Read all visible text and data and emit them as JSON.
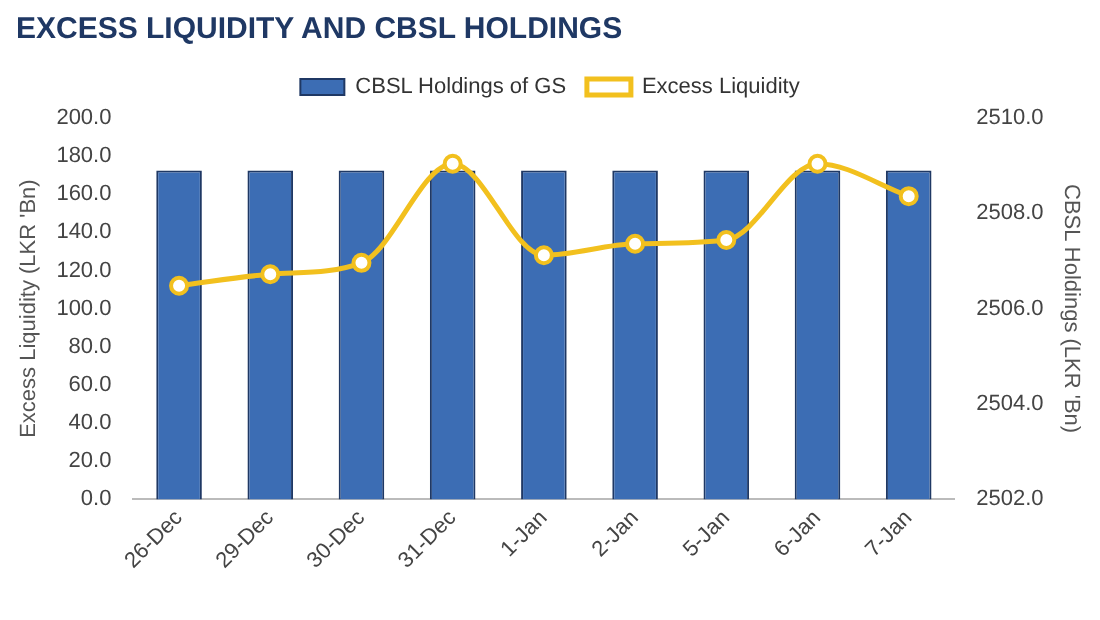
{
  "chart_data": {
    "type": "bar",
    "title": "EXCESS LIQUIDITY AND CBSL HOLDINGS",
    "categories": [
      "26-Dec",
      "29-Dec",
      "30-Dec",
      "31-Dec",
      "1-Jan",
      "2-Jan",
      "5-Jan",
      "6-Jan",
      "7-Jan"
    ],
    "series": [
      {
        "name": "CBSL Holdings of GS",
        "axis": "y2",
        "color": "#3c6db4",
        "values": [
          2508.9,
          2508.9,
          2508.9,
          2508.9,
          2508.9,
          2508.9,
          2508.9,
          2508.9,
          2508.9
        ]
      },
      {
        "name": "Excess Liquidity",
        "type": "line",
        "color": "#f2c01e",
        "values": [
          112,
          118,
          124,
          176,
          128,
          134,
          136,
          176,
          159
        ]
      }
    ],
    "ylabel": "Excess Liquidity (LKR 'Bn)",
    "y2label": "CBSL Holdings (LKR 'Bn)",
    "ylim": [
      0,
      200
    ],
    "yticks": [
      {
        "value": 0,
        "label": "0.0"
      },
      {
        "value": 20,
        "label": "20.0"
      },
      {
        "value": 40,
        "label": "40.0"
      },
      {
        "value": 60,
        "label": "60.0"
      },
      {
        "value": 80,
        "label": "80.0"
      },
      {
        "value": 100,
        "label": "100.0"
      },
      {
        "value": 120,
        "label": "120.0"
      },
      {
        "value": 140,
        "label": "140.0"
      },
      {
        "value": 160,
        "label": "160.0"
      },
      {
        "value": 180,
        "label": "180.0"
      },
      {
        "value": 200,
        "label": "200.0"
      }
    ],
    "y2lim": [
      2502,
      2510
    ],
    "y2ticks": [
      {
        "value": 2502,
        "label": "2502.0"
      },
      {
        "value": 2504,
        "label": "2504.0"
      },
      {
        "value": 2506,
        "label": "2506.0"
      },
      {
        "value": 2508,
        "label": "2508.0"
      },
      {
        "value": 2510,
        "label": "2510.0"
      }
    ],
    "legend": "top",
    "marker": "circle",
    "grid": false
  }
}
